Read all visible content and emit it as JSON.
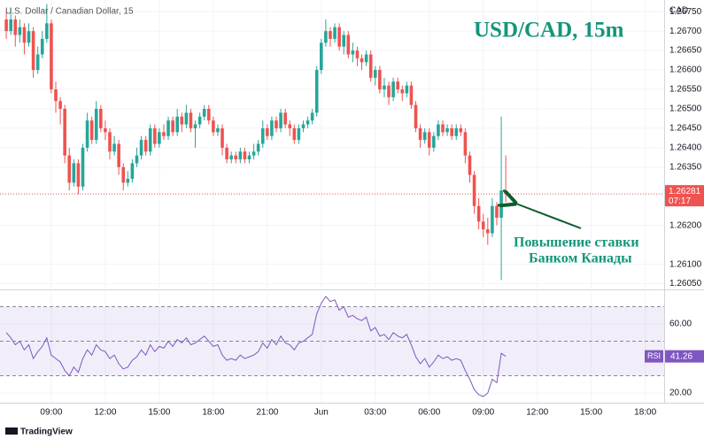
{
  "chart_data": [
    {
      "type": "candlestick",
      "title": "USD/CAD, 15m",
      "symbol": "U.S. Dollar / Canadian Dollar, 15",
      "currency": "CAD",
      "countdown": "07:17",
      "annotation": [
        "Повышение ставки",
        "Банком Канады"
      ],
      "up_color": "#26a69a",
      "down_color": "#ef5350",
      "grid": true,
      "open": [
        1.2673,
        1.267,
        1.2673,
        1.2669,
        1.2671,
        1.2667,
        1.267,
        1.266,
        1.2664,
        1.2668,
        1.2672,
        1.2655,
        1.2652,
        1.265,
        1.2638,
        1.2631,
        1.2636,
        1.263,
        1.264,
        1.2647,
        1.2642,
        1.265,
        1.2645,
        1.2644,
        1.2639,
        1.2641,
        1.2635,
        1.2631,
        1.2632,
        1.2636,
        1.2638,
        1.2642,
        1.2639,
        1.2645,
        1.2641,
        1.2644,
        1.2643,
        1.2647,
        1.2644,
        1.2648,
        1.2646,
        1.2649,
        1.2645,
        1.2646,
        1.2648,
        1.265,
        1.2647,
        1.2644,
        1.2645,
        1.264,
        1.2637,
        1.2638,
        1.2637,
        1.2639,
        1.2637,
        1.2638,
        1.2639,
        1.2641,
        1.2645,
        1.2643,
        1.2647,
        1.2645,
        1.2649,
        1.2646,
        1.2645,
        1.2642,
        1.2645,
        1.2646,
        1.2647,
        1.2649,
        1.266,
        1.2667,
        1.267,
        1.2668,
        1.2671,
        1.2666,
        1.2669,
        1.2664,
        1.2665,
        1.2663,
        1.2662,
        1.2664,
        1.2658,
        1.266,
        1.2655,
        1.2656,
        1.2653,
        1.2657,
        1.2655,
        1.2654,
        1.2656,
        1.2651,
        1.2645,
        1.2642,
        1.2644,
        1.264,
        1.2643,
        1.2646,
        1.2644,
        1.2645,
        1.2643,
        1.2645,
        1.2644,
        1.2638,
        1.2633,
        1.2625,
        1.2621,
        1.2619,
        1.2618,
        1.2625,
        1.2622,
        1.2629
      ],
      "high": [
        1.2675,
        1.2676,
        1.2674,
        1.2673,
        1.2672,
        1.2672,
        1.2671,
        1.2666,
        1.267,
        1.2677,
        1.2673,
        1.2657,
        1.2653,
        1.2651,
        1.264,
        1.2637,
        1.2637,
        1.2641,
        1.2649,
        1.2648,
        1.2652,
        1.2651,
        1.2647,
        1.2645,
        1.2643,
        1.2642,
        1.2636,
        1.2634,
        1.2637,
        1.264,
        1.2643,
        1.2643,
        1.2646,
        1.2646,
        1.2645,
        1.2646,
        1.2648,
        1.2648,
        1.265,
        1.2649,
        1.2651,
        1.265,
        1.2647,
        1.2649,
        1.2651,
        1.2651,
        1.2648,
        1.2646,
        1.2646,
        1.2641,
        1.2639,
        1.2639,
        1.264,
        1.264,
        1.2639,
        1.2641,
        1.2642,
        1.2647,
        1.2646,
        1.2648,
        1.2648,
        1.265,
        1.265,
        1.2647,
        1.2646,
        1.2646,
        1.2647,
        1.2648,
        1.265,
        1.2661,
        1.2668,
        1.2673,
        1.2671,
        1.2672,
        1.2672,
        1.267,
        1.267,
        1.2667,
        1.2666,
        1.2664,
        1.2665,
        1.2665,
        1.2661,
        1.2661,
        1.2658,
        1.2657,
        1.2658,
        1.2658,
        1.2656,
        1.2657,
        1.2657,
        1.2652,
        1.2646,
        1.2645,
        1.2645,
        1.2644,
        1.2647,
        1.2647,
        1.2646,
        1.2646,
        1.2646,
        1.2646,
        1.2645,
        1.2639,
        1.2634,
        1.2627,
        1.2623,
        1.2622,
        1.2627,
        1.2626,
        1.2648,
        1.2638
      ],
      "low": [
        1.2668,
        1.2669,
        1.2666,
        1.2667,
        1.2664,
        1.2666,
        1.2658,
        1.2659,
        1.2663,
        1.2667,
        1.2654,
        1.2649,
        1.2646,
        1.2636,
        1.2629,
        1.263,
        1.2628,
        1.2629,
        1.2639,
        1.2641,
        1.2641,
        1.2644,
        1.2642,
        1.2637,
        1.2638,
        1.2633,
        1.2629,
        1.263,
        1.2631,
        1.2635,
        1.2637,
        1.2638,
        1.2638,
        1.264,
        1.264,
        1.2642,
        1.2642,
        1.2643,
        1.2643,
        1.2644,
        1.2645,
        1.2644,
        1.264,
        1.2645,
        1.2647,
        1.2646,
        1.2643,
        1.2643,
        1.2638,
        1.2636,
        1.2636,
        1.2636,
        1.2636,
        1.2636,
        1.2636,
        1.2637,
        1.2638,
        1.264,
        1.2642,
        1.2642,
        1.2644,
        1.2644,
        1.2645,
        1.2643,
        1.2641,
        1.2641,
        1.2644,
        1.2645,
        1.2646,
        1.2648,
        1.2659,
        1.2666,
        1.2666,
        1.2667,
        1.2665,
        1.2664,
        1.2663,
        1.2662,
        1.2661,
        1.266,
        1.2661,
        1.2657,
        1.2656,
        1.2654,
        1.2653,
        1.2651,
        1.2652,
        1.2654,
        1.2652,
        1.2653,
        1.265,
        1.2644,
        1.264,
        1.2641,
        1.2638,
        1.2639,
        1.2642,
        1.2643,
        1.2643,
        1.2642,
        1.2642,
        1.2643,
        1.2636,
        1.2631,
        1.2623,
        1.2619,
        1.2617,
        1.2615,
        1.2617,
        1.262,
        1.2606,
        1.2626
      ],
      "close": [
        1.267,
        1.2673,
        1.2669,
        1.2671,
        1.2667,
        1.267,
        1.266,
        1.2664,
        1.2668,
        1.2672,
        1.2655,
        1.2652,
        1.265,
        1.2638,
        1.2631,
        1.2636,
        1.263,
        1.264,
        1.2647,
        1.2642,
        1.265,
        1.2645,
        1.2644,
        1.2639,
        1.2641,
        1.2635,
        1.2631,
        1.2632,
        1.2636,
        1.2638,
        1.2642,
        1.2639,
        1.2645,
        1.2641,
        1.2644,
        1.2643,
        1.2647,
        1.2644,
        1.2648,
        1.2646,
        1.2649,
        1.2645,
        1.2646,
        1.2648,
        1.265,
        1.2647,
        1.2644,
        1.2645,
        1.264,
        1.2637,
        1.2638,
        1.2637,
        1.2639,
        1.2637,
        1.2638,
        1.2639,
        1.2641,
        1.2645,
        1.2643,
        1.2647,
        1.2645,
        1.2649,
        1.2646,
        1.2645,
        1.2642,
        1.2645,
        1.2646,
        1.2647,
        1.2649,
        1.266,
        1.2667,
        1.267,
        1.2668,
        1.2671,
        1.2666,
        1.2669,
        1.2664,
        1.2665,
        1.2663,
        1.2662,
        1.2664,
        1.2658,
        1.266,
        1.2655,
        1.2656,
        1.2653,
        1.2657,
        1.2655,
        1.2654,
        1.2656,
        1.2651,
        1.2645,
        1.2642,
        1.2644,
        1.264,
        1.2643,
        1.2646,
        1.2644,
        1.2645,
        1.2643,
        1.2645,
        1.2644,
        1.2638,
        1.2633,
        1.2625,
        1.2621,
        1.2619,
        1.2618,
        1.2625,
        1.2622,
        1.2629,
        1.26281
      ],
      "ylim": [
        1.2604,
        1.2678
      ],
      "yticks": [
        {
          "value": 1.2675,
          "label": "1.26750"
        },
        {
          "value": 1.267,
          "label": "1.26700"
        },
        {
          "value": 1.2665,
          "label": "1.26650"
        },
        {
          "value": 1.266,
          "label": "1.26600"
        },
        {
          "value": 1.2655,
          "label": "1.26550"
        },
        {
          "value": 1.265,
          "label": "1.26500"
        },
        {
          "value": 1.2645,
          "label": "1.26450"
        },
        {
          "value": 1.264,
          "label": "1.26400"
        },
        {
          "value": 1.2635,
          "label": "1.26350"
        },
        {
          "value": 1.262,
          "label": "1.26200"
        },
        {
          "value": 1.261,
          "label": "1.26100"
        },
        {
          "value": 1.2605,
          "label": "1.26050"
        }
      ],
      "xlim": [
        -1.4,
        146.2
      ],
      "xticks": [
        {
          "value": 10,
          "label": "09:00"
        },
        {
          "value": 22,
          "label": "12:00"
        },
        {
          "value": 34,
          "label": "15:00"
        },
        {
          "value": 46,
          "label": "18:00"
        },
        {
          "value": 58,
          "label": "21:00"
        },
        {
          "value": 70,
          "label": "Jun"
        },
        {
          "value": 82,
          "label": "03:00"
        },
        {
          "value": 94,
          "label": "06:00"
        },
        {
          "value": 106,
          "label": "09:00"
        },
        {
          "value": 118,
          "label": "12:00"
        },
        {
          "value": 130,
          "label": "15:00"
        },
        {
          "value": 142,
          "label": "18:00"
        }
      ]
    },
    {
      "type": "line",
      "name": "RSI",
      "color": "#7e57c2",
      "values": [
        55,
        52,
        48,
        50,
        45,
        48,
        40,
        44,
        47,
        52,
        42,
        40,
        38,
        33,
        30,
        35,
        32,
        40,
        45,
        42,
        48,
        45,
        44,
        40,
        42,
        37,
        34,
        35,
        39,
        41,
        45,
        42,
        48,
        44,
        47,
        46,
        50,
        47,
        51,
        49,
        52,
        48,
        49,
        51,
        53,
        50,
        47,
        48,
        42,
        39,
        40,
        39,
        42,
        40,
        41,
        42,
        44,
        49,
        46,
        51,
        48,
        53,
        49,
        48,
        45,
        49,
        50,
        52,
        54,
        66,
        72,
        76,
        73,
        74,
        68,
        70,
        64,
        65,
        63,
        62,
        64,
        56,
        58,
        53,
        54,
        51,
        55,
        53,
        52,
        54,
        48,
        41,
        37,
        40,
        35,
        38,
        42,
        40,
        41,
        39,
        40,
        39,
        33,
        28,
        22,
        19,
        18,
        20,
        28,
        26,
        43,
        41.26
      ],
      "ylim": [
        14.4,
        78.5
      ],
      "yticks": [
        {
          "value": 60,
          "label": "60.00"
        },
        {
          "value": 20,
          "label": "20.00"
        }
      ],
      "bands": [
        70,
        50,
        30
      ]
    }
  ],
  "footer": "TradingView"
}
